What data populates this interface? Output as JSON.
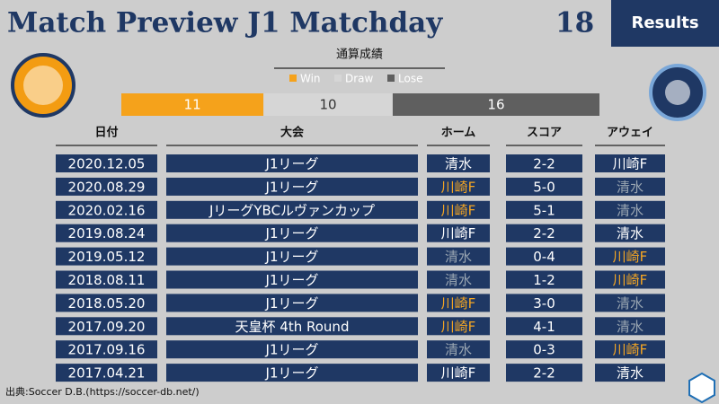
{
  "header": {
    "title": "Match Preview J1 Matchday",
    "matchday": "18",
    "button": "Results"
  },
  "record": {
    "title": "通算成績",
    "series": [
      {
        "name": "Win",
        "color": "#f5a21b",
        "value": 11
      },
      {
        "name": "Draw",
        "color": "#d6d6d6",
        "value": 10
      },
      {
        "name": "Lose",
        "color": "#5f5f5f",
        "value": 16
      }
    ]
  },
  "table": {
    "columns": [
      "日付",
      "大会",
      "ホーム",
      "スコア",
      "アウェイ"
    ],
    "rows": [
      [
        "2020.12.05",
        "J1リーグ",
        "清水",
        "2-2",
        "川崎F"
      ],
      [
        "2020.08.29",
        "J1リーグ",
        "川崎F",
        "5-0",
        "清水"
      ],
      [
        "2020.02.16",
        "JリーグYBCルヴァンカップ",
        "川崎F",
        "5-1",
        "清水"
      ],
      [
        "2019.08.24",
        "J1リーグ",
        "川崎F",
        "2-2",
        "清水"
      ],
      [
        "2019.05.12",
        "J1リーグ",
        "清水",
        "0-4",
        "川崎F"
      ],
      [
        "2018.08.11",
        "J1リーグ",
        "清水",
        "1-2",
        "川崎F"
      ],
      [
        "2018.05.20",
        "J1リーグ",
        "川崎F",
        "3-0",
        "清水"
      ],
      [
        "2017.09.20",
        "天皇杯 4th Round",
        "川崎F",
        "4-1",
        "清水"
      ],
      [
        "2017.09.16",
        "J1リーグ",
        "清水",
        "0-3",
        "川崎F"
      ],
      [
        "2017.04.21",
        "J1リーグ",
        "川崎F",
        "2-2",
        "清水"
      ]
    ]
  },
  "source": "出典:Soccer D.B.(https://soccer-db.net/)"
}
